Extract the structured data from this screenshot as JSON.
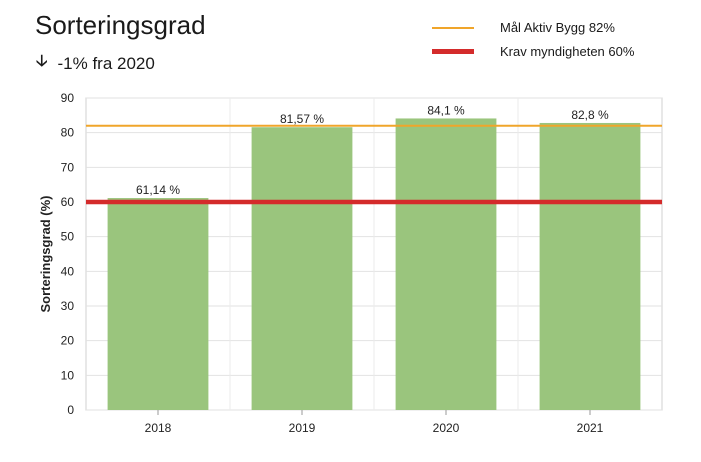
{
  "header": {
    "title": "Sorteringsgrad",
    "change_arrow_icon": "arrow-down-icon",
    "change_text": "-1% fra 2020"
  },
  "legend": [
    {
      "label": "Mål Aktiv Bygg  82%",
      "color": "#f0a52a"
    },
    {
      "label": "Krav myndigheten 60%",
      "color": "#d42b2b"
    }
  ],
  "chart_data": {
    "type": "bar",
    "categories": [
      "2018",
      "2019",
      "2020",
      "2021"
    ],
    "values": [
      61.14,
      81.57,
      84.1,
      82.8
    ],
    "data_labels": [
      "61,14 %",
      "81,57 %",
      "84,1 %",
      "82,8 %"
    ],
    "title": "Sorteringsgrad",
    "xlabel": "",
    "ylabel": "Sorteringsgrad (%)",
    "ylim": [
      0,
      90
    ],
    "yticks": [
      0,
      10,
      20,
      30,
      40,
      50,
      60,
      70,
      80,
      90
    ],
    "grid": true,
    "bar_color": "#9ac57d",
    "reference_lines": [
      {
        "name": "Mål Aktiv Bygg",
        "value": 82,
        "color": "#f0a52a"
      },
      {
        "name": "Krav myndigheten",
        "value": 60,
        "color": "#d42b2b"
      }
    ]
  }
}
